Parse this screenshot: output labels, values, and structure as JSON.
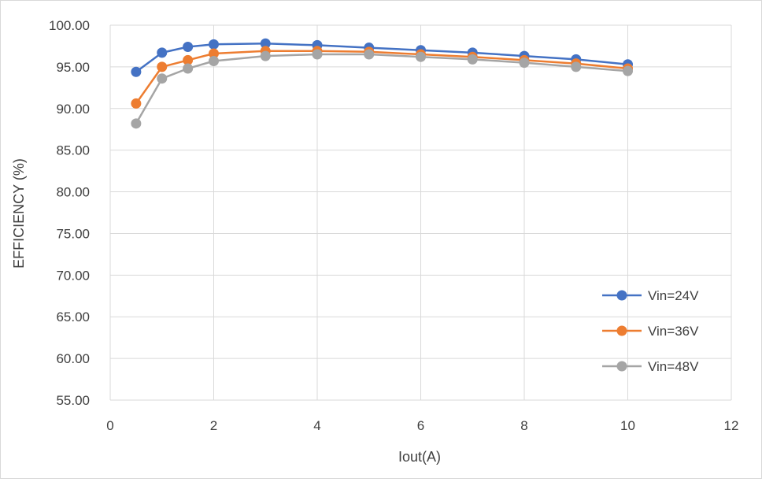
{
  "chart_data": {
    "type": "line",
    "xlabel": "Iout(A)",
    "ylabel": "EFFICIENCY (%)",
    "xlim": [
      0,
      12
    ],
    "ylim": [
      55,
      100
    ],
    "x_ticks": [
      "0",
      "2",
      "4",
      "6",
      "8",
      "10",
      "12"
    ],
    "y_ticks": [
      "55.00",
      "60.00",
      "65.00",
      "70.00",
      "75.00",
      "80.00",
      "85.00",
      "90.00",
      "95.00",
      "100.00"
    ],
    "grid": true,
    "legend_position": "bottom-right",
    "x": [
      0.5,
      1,
      1.5,
      2,
      3,
      4,
      5,
      6,
      7,
      8,
      9,
      10
    ],
    "series": [
      {
        "name": "Vin=24V",
        "color": "#4472c4",
        "values": [
          94.4,
          96.7,
          97.4,
          97.7,
          97.8,
          97.6,
          97.3,
          97.0,
          96.7,
          96.3,
          95.9,
          95.3
        ]
      },
      {
        "name": "Vin=36V",
        "color": "#ed7d31",
        "values": [
          90.6,
          95.0,
          95.8,
          96.6,
          96.9,
          96.9,
          96.8,
          96.5,
          96.2,
          95.8,
          95.4,
          94.8
        ]
      },
      {
        "name": "Vin=48V",
        "color": "#a5a5a5",
        "values": [
          88.2,
          93.6,
          94.8,
          95.7,
          96.3,
          96.5,
          96.5,
          96.2,
          95.9,
          95.5,
          95.0,
          94.5
        ]
      }
    ]
  }
}
